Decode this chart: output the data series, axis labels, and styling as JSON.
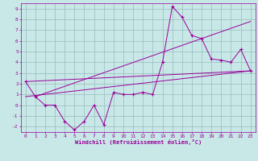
{
  "x": [
    0,
    1,
    2,
    3,
    4,
    5,
    6,
    7,
    8,
    9,
    10,
    11,
    12,
    13,
    14,
    15,
    16,
    17,
    18,
    19,
    20,
    21,
    22,
    23
  ],
  "line1": [
    2.2,
    0.8,
    0.0,
    0.0,
    -1.5,
    -2.3,
    -1.5,
    0.0,
    -1.8,
    1.2,
    1.0,
    1.0,
    1.2,
    1.0,
    4.0,
    9.2,
    8.2,
    6.5,
    6.2,
    4.3,
    4.2,
    4.0,
    5.2,
    3.2
  ],
  "line2": [
    [
      0,
      2.2
    ],
    [
      23,
      3.2
    ]
  ],
  "line3": [
    [
      0,
      0.8
    ],
    [
      23,
      3.2
    ]
  ],
  "line4": [
    [
      1,
      0.8
    ],
    [
      23,
      7.8
    ]
  ],
  "color": "#990099",
  "bg_color": "#c8e8e8",
  "grid_color": "#99bbbb",
  "xlabel": "Windchill (Refroidissement éolien,°C)",
  "xlim": [
    -0.5,
    23.5
  ],
  "ylim": [
    -2.5,
    9.5
  ],
  "yticks": [
    -2,
    -1,
    0,
    1,
    2,
    3,
    4,
    5,
    6,
    7,
    8,
    9
  ],
  "xticks": [
    0,
    1,
    2,
    3,
    4,
    5,
    6,
    7,
    8,
    9,
    10,
    11,
    12,
    13,
    14,
    15,
    16,
    17,
    18,
    19,
    20,
    21,
    22,
    23
  ]
}
